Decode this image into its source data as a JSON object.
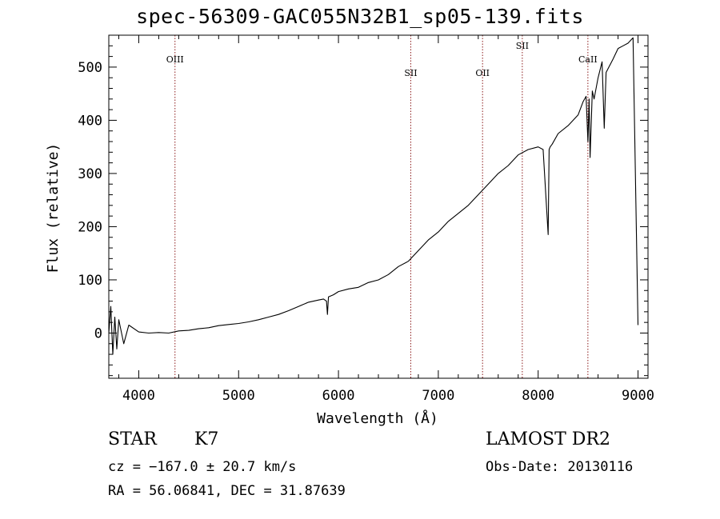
{
  "chart_data": {
    "type": "line",
    "title": "spec-56309-GAC055N32B1_sp05-139.fits",
    "xlabel": "Wavelength (Å)",
    "ylabel": "Flux (relative)",
    "xlim": [
      3700,
      9100
    ],
    "ylim": [
      -85,
      560
    ],
    "x_ticks": [
      4000,
      5000,
      6000,
      7000,
      8000,
      9000
    ],
    "y_ticks": [
      0,
      100,
      200,
      300,
      400,
      500
    ],
    "grid": false,
    "line_color": "#000000",
    "marker_color": "#8b1a1a",
    "series": [
      {
        "x": [
          3700,
          3720,
          3740,
          3760,
          3780,
          3800,
          3850,
          3900,
          4000,
          4100,
          4200,
          4300,
          4400,
          4500,
          4600,
          4700,
          4800,
          4900,
          5000,
          5100,
          5200,
          5300,
          5400,
          5500,
          5600,
          5700,
          5800,
          5850,
          5880,
          5890,
          5900,
          5950,
          6000,
          6100,
          6200,
          6300,
          6400,
          6500,
          6600,
          6700,
          6800,
          6900,
          7000,
          7100,
          7200,
          7300,
          7400,
          7500,
          7600,
          7700,
          7800,
          7900,
          8000,
          8050,
          8100,
          8110,
          8120,
          8140,
          8200,
          8300,
          8400,
          8450,
          8480,
          8498,
          8510,
          8520,
          8542,
          8560,
          8600,
          8640,
          8662,
          8680,
          8750,
          8800,
          8850,
          8900,
          8950,
          9000
        ],
        "y": [
          0,
          50,
          -40,
          30,
          -30,
          25,
          -20,
          15,
          2,
          0,
          1,
          0,
          4,
          5,
          8,
          10,
          14,
          16,
          18,
          21,
          25,
          30,
          35,
          42,
          50,
          58,
          62,
          64,
          60,
          35,
          68,
          72,
          78,
          83,
          86,
          95,
          100,
          110,
          125,
          135,
          155,
          175,
          190,
          210,
          225,
          240,
          260,
          280,
          300,
          315,
          335,
          345,
          350,
          345,
          185,
          345,
          350,
          355,
          375,
          390,
          410,
          435,
          445,
          360,
          440,
          330,
          455,
          440,
          480,
          510,
          385,
          490,
          515,
          535,
          540,
          545,
          555,
          15
        ]
      }
    ],
    "line_markers": [
      {
        "label": "OIII",
        "x": 4363
      },
      {
        "label": "SII",
        "x": 6724
      },
      {
        "label": "OII",
        "x": 7443
      },
      {
        "label": "SII",
        "x": 7841
      },
      {
        "label": "CaII",
        "x": 8498
      }
    ]
  },
  "info": {
    "object_class": "STAR",
    "subclass": "K7",
    "survey": "LAMOST DR2",
    "cz": "cz = −167.0 ± 20.7 km/s",
    "obs_date": "Obs-Date: 20130116",
    "coords": "RA =  56.06841, DEC =  31.87639"
  }
}
